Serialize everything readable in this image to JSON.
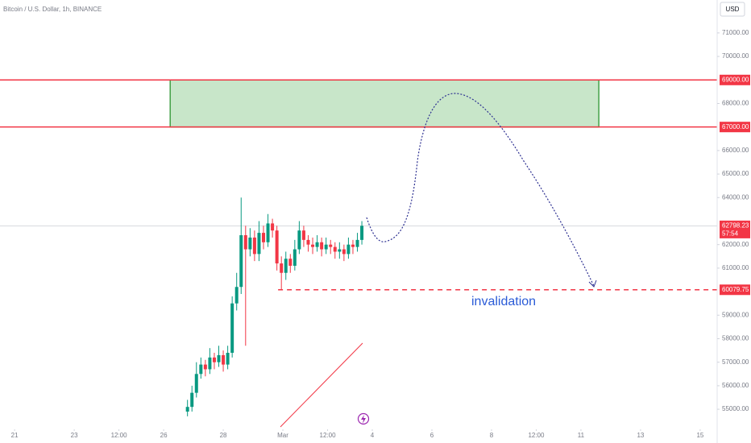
{
  "chart_data": {
    "type": "candlestick",
    "title": "Bitcoin / U.S. Dollar, 1h, BINANCE",
    "currency": "USD",
    "up_color": "#089981",
    "down_color": "#f23645",
    "x": [
      5.8,
      5.95,
      6.1,
      6.25,
      6.4,
      6.55,
      6.7,
      6.85,
      7.0,
      7.15,
      7.3,
      7.45,
      7.6,
      7.75,
      7.9,
      8.05,
      8.2,
      8.35,
      8.5,
      8.65,
      8.8,
      8.95,
      9.1,
      9.25,
      9.4,
      9.55,
      9.7,
      9.85,
      10.0,
      10.15,
      10.3,
      10.45,
      10.6,
      10.75,
      10.9,
      11.05,
      11.2,
      11.35,
      11.5,
      11.65
    ],
    "open": [
      54900,
      55100,
      55700,
      56500,
      56900,
      56700,
      57200,
      57000,
      57300,
      56900,
      57400,
      59500,
      60200,
      62400,
      61800,
      62300,
      61600,
      62500,
      62100,
      62900,
      62600,
      61200,
      60800,
      61400,
      61100,
      61800,
      62600,
      62200,
      62000,
      61900,
      62100,
      61800,
      62000,
      61900,
      61700,
      61800,
      61600,
      62000,
      61900,
      62200
    ],
    "high": [
      55400,
      56000,
      57000,
      57200,
      57100,
      57600,
      57400,
      57700,
      57500,
      57700,
      59800,
      60800,
      64000,
      62800,
      62700,
      62600,
      63000,
      62800,
      63300,
      63100,
      62800,
      61500,
      61700,
      61600,
      62200,
      63000,
      62800,
      62400,
      62300,
      62400,
      62300,
      62300,
      62200,
      62100,
      62100,
      62000,
      62300,
      62200,
      62500,
      63000
    ],
    "low": [
      54700,
      54900,
      55500,
      56300,
      56400,
      56500,
      56700,
      56800,
      56600,
      56700,
      57200,
      59200,
      59900,
      57700,
      61500,
      61300,
      61300,
      61800,
      61900,
      62300,
      60900,
      60100,
      60500,
      60800,
      60900,
      61600,
      61900,
      61700,
      61600,
      61700,
      61500,
      61600,
      61600,
      61400,
      61400,
      61300,
      61400,
      61600,
      61700,
      62000
    ],
    "close": [
      55100,
      55700,
      56500,
      56900,
      56700,
      57200,
      57000,
      57300,
      56900,
      57400,
      59500,
      60200,
      62400,
      61800,
      62300,
      61600,
      62500,
      62100,
      62900,
      62600,
      61200,
      60800,
      61400,
      61100,
      61800,
      62600,
      62200,
      62000,
      61900,
      62100,
      61800,
      62000,
      61900,
      61700,
      61800,
      61600,
      62000,
      61900,
      62200,
      62798.23
    ],
    "last_price": 62798.23,
    "countdown": "57:54",
    "xlim": [
      -0.49,
      23.57
    ],
    "ylim": [
      54250,
      72400
    ],
    "xticks": [
      {
        "value": 0,
        "label": "21"
      },
      {
        "value": 2,
        "label": "23"
      },
      {
        "value": 3.5,
        "label": "12:00"
      },
      {
        "value": 5,
        "label": "26"
      },
      {
        "value": 7,
        "label": "28"
      },
      {
        "value": 9,
        "label": "Mar"
      },
      {
        "value": 10.5,
        "label": "12:00"
      },
      {
        "value": 12,
        "label": "4"
      },
      {
        "value": 14,
        "label": "6"
      },
      {
        "value": 16,
        "label": "8"
      },
      {
        "value": 17.5,
        "label": "12:00"
      },
      {
        "value": 19,
        "label": "11"
      },
      {
        "value": 21,
        "label": "13"
      },
      {
        "value": 23,
        "label": "15"
      }
    ],
    "yticks": [
      {
        "value": 71000,
        "label": "71000.00"
      },
      {
        "value": 70000,
        "label": "70000.00"
      },
      {
        "value": 68000,
        "label": "68000.00"
      },
      {
        "value": 66000,
        "label": "66000.00"
      },
      {
        "value": 65000,
        "label": "65000.00"
      },
      {
        "value": 64000,
        "label": "64000.00"
      },
      {
        "value": 62000,
        "label": "62000.00"
      },
      {
        "value": 61000,
        "label": "61000.00"
      },
      {
        "value": 59000,
        "label": "59000.00"
      },
      {
        "value": 58000,
        "label": "58000.00"
      },
      {
        "value": 57000,
        "label": "57000.00"
      },
      {
        "value": 56000,
        "label": "56000.00"
      },
      {
        "value": 55000,
        "label": "55000.00"
      }
    ],
    "levels": [
      {
        "value": 69000,
        "label": "69000.00",
        "color": "#f23645",
        "style": "solid",
        "x_start": -0.49
      },
      {
        "value": 67000,
        "label": "67000.00",
        "color": "#f23645",
        "style": "solid",
        "x_start": -0.49
      },
      {
        "value": 60079.75,
        "label": "60079.75",
        "color": "#f23645",
        "style": "dashed",
        "x_start": 8.84
      }
    ],
    "zone": {
      "top": 69000,
      "bottom": 67000,
      "x_start": 5.22,
      "x_end": 19.6,
      "color": "#c8e6c9",
      "border": "#43a047"
    },
    "annotation": "invalidation"
  }
}
